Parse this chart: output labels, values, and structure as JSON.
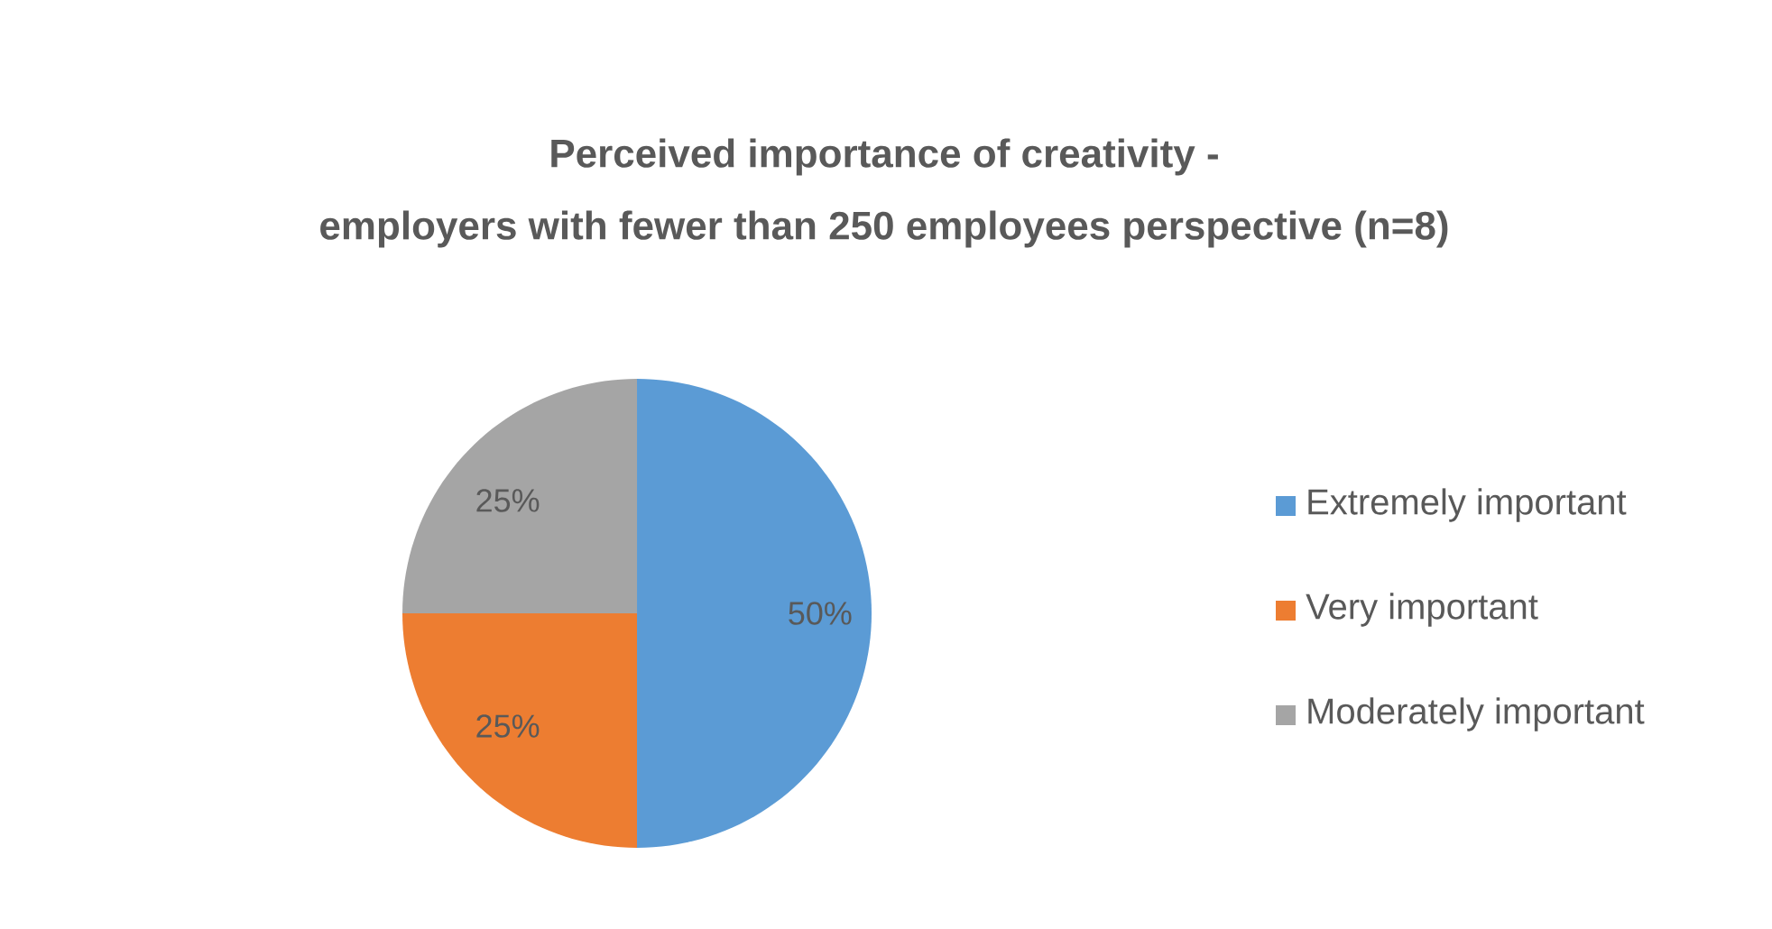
{
  "chart_data": {
    "type": "pie",
    "title": "Perceived importance of creativity -",
    "subtitle": "employers with fewer than 250 employees perspective (n=8)",
    "categories": [
      "Extremely important",
      "Very important",
      "Moderately important"
    ],
    "values": [
      50,
      25,
      25
    ],
    "colors": [
      "#5b9bd5",
      "#ed7d31",
      "#a5a5a5"
    ],
    "value_labels": [
      "50%",
      "25%",
      "25%"
    ],
    "legend": "right"
  }
}
